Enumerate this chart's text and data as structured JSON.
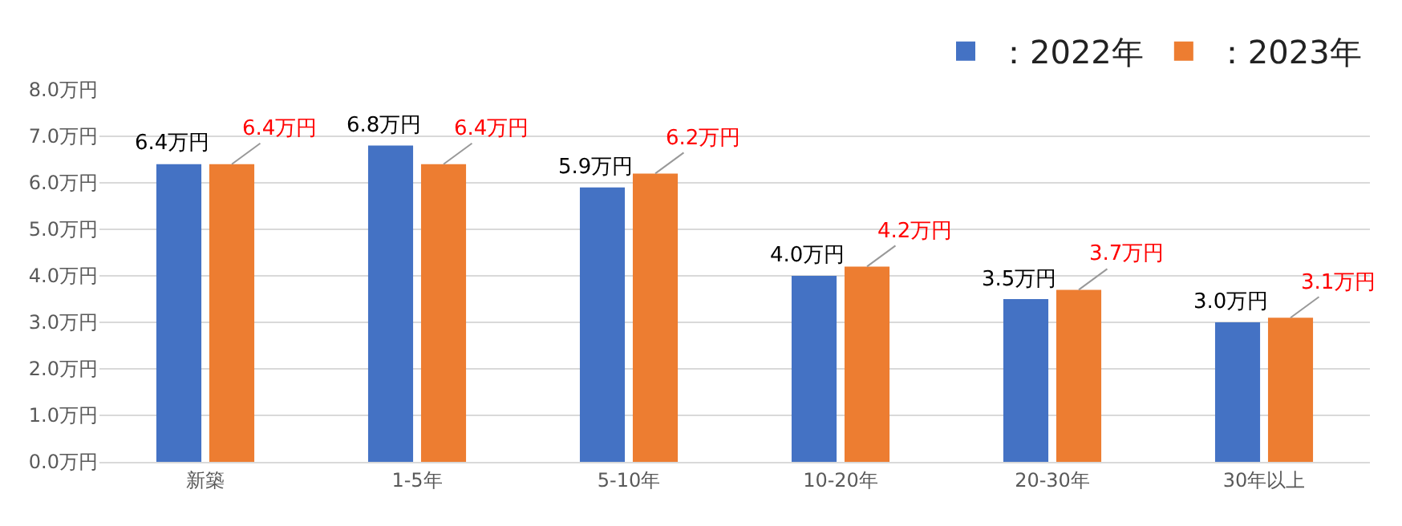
{
  "chart_data": {
    "type": "bar",
    "categories": [
      "新築",
      "1-5年",
      "5-10年",
      "10-20年",
      "20-30年",
      "30年以上"
    ],
    "series": [
      {
        "name": "：2022年",
        "color": "#4472c4",
        "values": [
          6.4,
          6.8,
          5.9,
          4.0,
          3.5,
          3.0
        ],
        "value_labels": [
          "6.4万円",
          "6.8万円",
          "5.9万円",
          "4.0万円",
          "3.5万円",
          "3.0万円"
        ]
      },
      {
        "name": "：2023年",
        "color": "#ed7d31",
        "values": [
          6.4,
          6.4,
          6.2,
          4.2,
          3.7,
          3.1
        ],
        "value_labels": [
          "6.4万円",
          "6.4万円",
          "6.2万円",
          "4.2万円",
          "3.7万円",
          "3.1万円"
        ]
      }
    ],
    "ylim": [
      0,
      8
    ],
    "yticks": [
      {
        "value": 0,
        "label": "0.0万円"
      },
      {
        "value": 1,
        "label": "1.0万円"
      },
      {
        "value": 2,
        "label": "2.0万円"
      },
      {
        "value": 3,
        "label": "3.0万円"
      },
      {
        "value": 4,
        "label": "4.0万円"
      },
      {
        "value": 5,
        "label": "5.0万円"
      },
      {
        "value": 6,
        "label": "6.0万円"
      },
      {
        "value": 7,
        "label": "7.0万円"
      },
      {
        "value": 8,
        "label": "8.0万円"
      }
    ],
    "grid": "y",
    "legend": "top right"
  }
}
